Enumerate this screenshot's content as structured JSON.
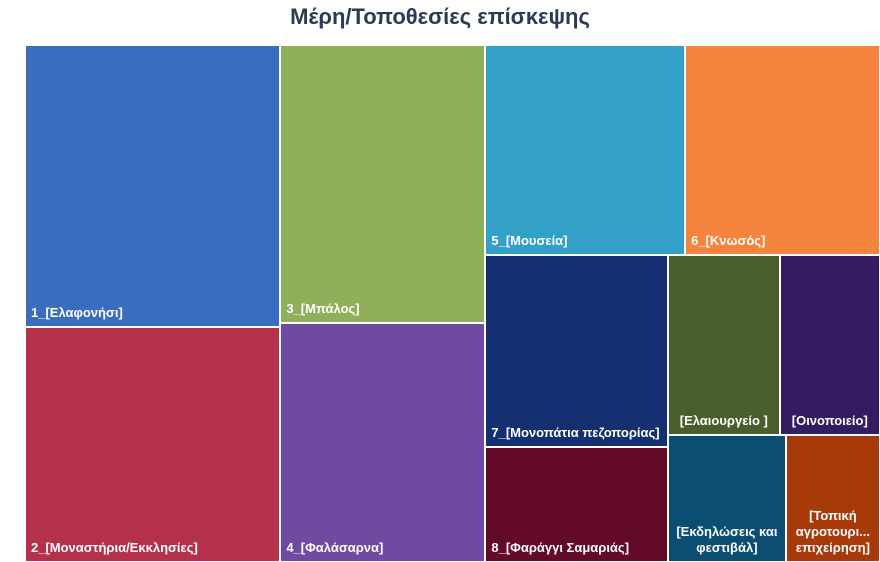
{
  "chart_data": {
    "type": "treemap",
    "title": "Μέρη/Τοποθεσίες επίσκεψης",
    "categories": [
      "1_[Ελαφονήσι]",
      "2_[Μοναστήρια/Εκκλησίες]",
      "3_[Μπάλος]",
      "4_[Φαλάσαρνα]",
      "5_[Μουσεία]",
      "6_[Κνωσός]",
      "7_[Μονοπάτια πεζοπορίας]",
      "8_[Φαράγγι Σαμαριάς]",
      "[Ελαιουργείο ]",
      "[Οινοποιείο]",
      "[Εκδηλώσεις και φεστιβάλ]",
      "[Τοπική αγροτουρι... επιχείρηση]"
    ],
    "values": [
      72,
      60,
      57,
      49,
      42,
      41,
      35,
      21,
      20,
      18,
      15,
      12
    ],
    "colors": [
      "#3a6cc0",
      "#b5304a",
      "#8faf5a",
      "#6f4aa0",
      "#33a0c8",
      "#f5843f",
      "#153070",
      "#620a28",
      "#4a5e2c",
      "#351c60",
      "#0c4e72",
      "#a83a0a"
    ]
  }
}
